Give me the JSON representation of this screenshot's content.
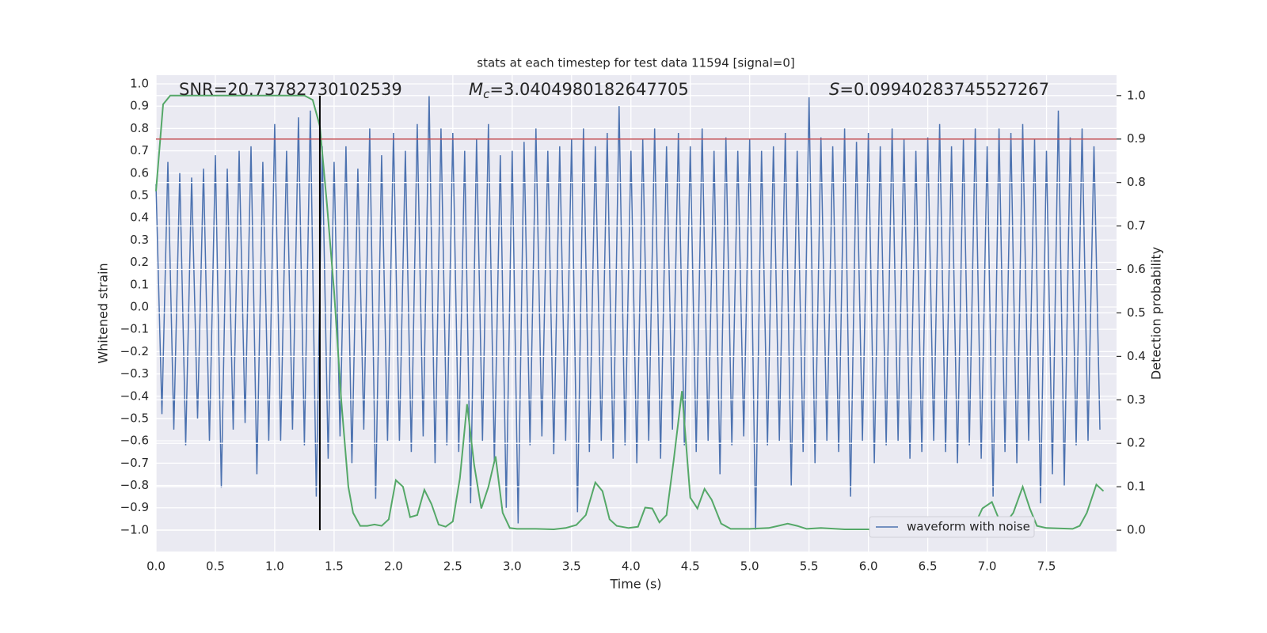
{
  "chart_data": {
    "type": "line",
    "title": "stats at each timestep for test data 11594 [signal=0]",
    "xlabel": "Time (s)",
    "ylabel": "Whitened strain",
    "y2label": "Detection probability",
    "annotations": [
      {
        "symbol": "SNR",
        "text": "=20.73782730102539"
      },
      {
        "symbol": "M",
        "subscript": "c",
        "text": "=3.0404980182647705",
        "italic": true
      },
      {
        "symbol": "S",
        "text": "=0.09940283745527267",
        "italic": true
      }
    ],
    "xlim": [
      0,
      8.09
    ],
    "ylim": [
      -1.096,
      1.039
    ],
    "y2lim": [
      -0.049,
      1.047
    ],
    "xticks": [
      {
        "value": 0,
        "label": "0.0"
      },
      0.5,
      {
        "value": 1,
        "label": "1.0"
      },
      1.5,
      {
        "value": 2,
        "label": "2.0"
      },
      2.5,
      {
        "value": 3,
        "label": "3.0"
      },
      3.5,
      {
        "value": 4,
        "label": "4.0"
      },
      4.5,
      {
        "value": 5,
        "label": "5.0"
      },
      5.5,
      {
        "value": 6,
        "label": "6.0"
      },
      6.5,
      {
        "value": 7,
        "label": "7.0"
      },
      7.5
    ],
    "yticks": [
      {
        "value": -1,
        "label": "−1.0"
      },
      {
        "value": -0.9,
        "label": "−0.9"
      },
      {
        "value": -0.8,
        "label": "−0.8"
      },
      {
        "value": -0.7,
        "label": "−0.7"
      },
      {
        "value": -0.6,
        "label": "−0.6"
      },
      {
        "value": -0.5,
        "label": "−0.5"
      },
      {
        "value": -0.4,
        "label": "−0.4"
      },
      {
        "value": -0.3,
        "label": "−0.3"
      },
      {
        "value": -0.2,
        "label": "−0.2"
      },
      {
        "value": -0.1,
        "label": "−0.1"
      },
      {
        "value": 0,
        "label": "0.0"
      },
      0.1,
      0.2,
      0.3,
      0.4,
      0.5,
      0.6,
      0.7,
      0.8,
      0.9,
      {
        "value": 1,
        "label": "1.0"
      }
    ],
    "y2ticks": [
      {
        "value": 0,
        "label": "0.0"
      },
      0.1,
      0.2,
      0.3,
      0.4,
      0.5,
      0.6,
      0.7,
      0.8,
      0.9,
      {
        "value": 1,
        "label": "1.0"
      }
    ],
    "grid": true,
    "legend": "lower right",
    "series": [
      {
        "name": "waveform with noise",
        "color": "#4c72b0",
        "axis": "y",
        "x": [
          0,
          0.05,
          0.1,
          0.15,
          0.2,
          0.25,
          0.3,
          0.35,
          0.4,
          0.45,
          0.5,
          0.55,
          0.6,
          0.65,
          0.7,
          0.75,
          0.8,
          0.85,
          0.9,
          0.95,
          1,
          1.05,
          1.1,
          1.15,
          1.2,
          1.25,
          1.3,
          1.35,
          1.4,
          1.45,
          1.5,
          1.55,
          1.6,
          1.65,
          1.7,
          1.75,
          1.8,
          1.85,
          1.9,
          1.95,
          2,
          2.05,
          2.1,
          2.15,
          2.2,
          2.25,
          2.3,
          2.35,
          2.4,
          2.45,
          2.5,
          2.55,
          2.6,
          2.65,
          2.7,
          2.75,
          2.8,
          2.85,
          2.9,
          2.95,
          3,
          3.05,
          3.1,
          3.15,
          3.2,
          3.25,
          3.3,
          3.35,
          3.4,
          3.45,
          3.5,
          3.55,
          3.6,
          3.65,
          3.7,
          3.75,
          3.8,
          3.85,
          3.9,
          3.95,
          4,
          4.05,
          4.1,
          4.15,
          4.2,
          4.25,
          4.3,
          4.35,
          4.4,
          4.45,
          4.5,
          4.55,
          4.6,
          4.65,
          4.7,
          4.75,
          4.8,
          4.85,
          4.9,
          4.95,
          5,
          5.05,
          5.1,
          5.15,
          5.2,
          5.25,
          5.3,
          5.35,
          5.4,
          5.45,
          5.5,
          5.55,
          5.6,
          5.65,
          5.7,
          5.75,
          5.8,
          5.85,
          5.9,
          5.95,
          6,
          6.05,
          6.1,
          6.15,
          6.2,
          6.25,
          6.3,
          6.35,
          6.4,
          6.45,
          6.5,
          6.55,
          6.6,
          6.65,
          6.7,
          6.75,
          6.8,
          6.85,
          6.9,
          6.95,
          7,
          7.05,
          7.1,
          7.15,
          7.2,
          7.25,
          7.3,
          7.35,
          7.4,
          7.45,
          7.5,
          7.55,
          7.6,
          7.65,
          7.7,
          7.75,
          7.8,
          7.85,
          7.9,
          7.95
        ],
        "values": [
          0.55,
          -0.48,
          0.65,
          -0.55,
          0.6,
          -0.62,
          0.58,
          -0.5,
          0.62,
          -0.6,
          0.68,
          -0.81,
          0.62,
          -0.55,
          0.7,
          -0.52,
          0.72,
          -0.75,
          0.65,
          -0.6,
          0.82,
          -0.6,
          0.7,
          -0.55,
          0.85,
          -0.62,
          0.88,
          -0.85,
          0.72,
          -0.68,
          0.65,
          -0.58,
          0.72,
          -0.7,
          0.62,
          -0.55,
          0.8,
          -0.86,
          0.68,
          -0.6,
          0.78,
          -0.6,
          0.7,
          -0.65,
          0.82,
          -0.58,
          0.95,
          -0.7,
          0.8,
          -0.62,
          0.78,
          -0.65,
          0.7,
          -0.88,
          0.75,
          -0.6,
          0.82,
          -0.7,
          0.68,
          -0.9,
          0.7,
          -0.97,
          0.74,
          -0.62,
          0.8,
          -0.58,
          0.7,
          -0.66,
          0.72,
          -0.6,
          0.75,
          -0.92,
          0.8,
          -0.65,
          0.72,
          -0.6,
          0.78,
          -0.68,
          0.9,
          -0.62,
          0.7,
          -0.7,
          0.75,
          -0.6,
          0.8,
          -0.68,
          0.72,
          -0.55,
          0.78,
          -0.62,
          0.72,
          -0.65,
          0.8,
          -0.6,
          0.7,
          -0.75,
          0.76,
          -0.62,
          0.7,
          -0.58,
          0.75,
          -1.0,
          0.7,
          -0.62,
          0.72,
          -0.6,
          0.78,
          -0.8,
          0.7,
          -0.65,
          0.94,
          -0.7,
          0.76,
          -0.6,
          0.72,
          -0.65,
          0.8,
          -0.85,
          0.74,
          -0.6,
          0.78,
          -0.7,
          0.72,
          -0.62,
          0.8,
          -0.6,
          0.75,
          -0.68,
          0.7,
          -0.65,
          0.76,
          -0.6,
          0.82,
          -0.65,
          0.72,
          -0.7,
          0.75,
          -0.62,
          0.8,
          -0.68,
          0.72,
          -0.85,
          0.8,
          -0.65,
          0.78,
          -0.7,
          0.82,
          -0.6,
          0.75,
          -0.88,
          0.7,
          -0.75,
          0.88,
          -0.8,
          0.76,
          -0.62,
          0.8,
          -0.6,
          0.72,
          -0.55
        ]
      },
      {
        "color": "#55a868",
        "axis": "y2",
        "x": [
          0,
          0.06,
          0.12,
          0.5,
          1,
          1.25,
          1.32,
          1.38,
          1.44,
          1.5,
          1.56,
          1.62,
          1.66,
          1.72,
          1.78,
          1.84,
          1.9,
          1.96,
          2.02,
          2.08,
          2.14,
          2.2,
          2.26,
          2.32,
          2.38,
          2.44,
          2.5,
          2.56,
          2.62,
          2.68,
          2.74,
          2.8,
          2.86,
          2.92,
          2.98,
          3.04,
          3.2,
          3.35,
          3.45,
          3.54,
          3.62,
          3.7,
          3.76,
          3.82,
          3.88,
          3.98,
          4.06,
          4.12,
          4.18,
          4.24,
          4.3,
          4.36,
          4.43,
          4.5,
          4.56,
          4.62,
          4.68,
          4.76,
          4.84,
          5,
          5.16,
          5.24,
          5.32,
          5.4,
          5.48,
          5.6,
          5.8,
          6,
          6.5,
          6.8,
          6.9,
          6.96,
          7.04,
          7.1,
          7.16,
          7.22,
          7.3,
          7.36,
          7.42,
          7.5,
          7.72,
          7.78,
          7.84,
          7.92,
          7.98
        ],
        "values": [
          0.78,
          0.98,
          1,
          1,
          1,
          1,
          0.99,
          0.93,
          0.75,
          0.55,
          0.3,
          0.1,
          0.04,
          0.01,
          0.01,
          0.013,
          0.01,
          0.025,
          0.115,
          0.1,
          0.03,
          0.035,
          0.093,
          0.06,
          0.013,
          0.008,
          0.02,
          0.12,
          0.29,
          0.15,
          0.05,
          0.1,
          0.17,
          0.04,
          0.005,
          0.003,
          0.003,
          0.002,
          0.005,
          0.012,
          0.035,
          0.11,
          0.09,
          0.025,
          0.01,
          0.005,
          0.008,
          0.052,
          0.05,
          0.018,
          0.035,
          0.16,
          0.32,
          0.075,
          0.05,
          0.095,
          0.07,
          0.015,
          0.003,
          0.003,
          0.005,
          0.01,
          0.015,
          0.01,
          0.003,
          0.005,
          0.002,
          0.002,
          0.001,
          0.003,
          0.015,
          0.05,
          0.065,
          0.025,
          0.018,
          0.04,
          0.1,
          0.05,
          0.01,
          0.005,
          0.003,
          0.01,
          0.04,
          0.105,
          0.09
        ]
      }
    ],
    "hline": {
      "y": 0.9,
      "axis": "y2",
      "color": "#c44e52"
    },
    "vline": {
      "x": 1.38,
      "ymin": 0,
      "ymax": 1,
      "axis": "y2",
      "color": "#000000"
    }
  }
}
